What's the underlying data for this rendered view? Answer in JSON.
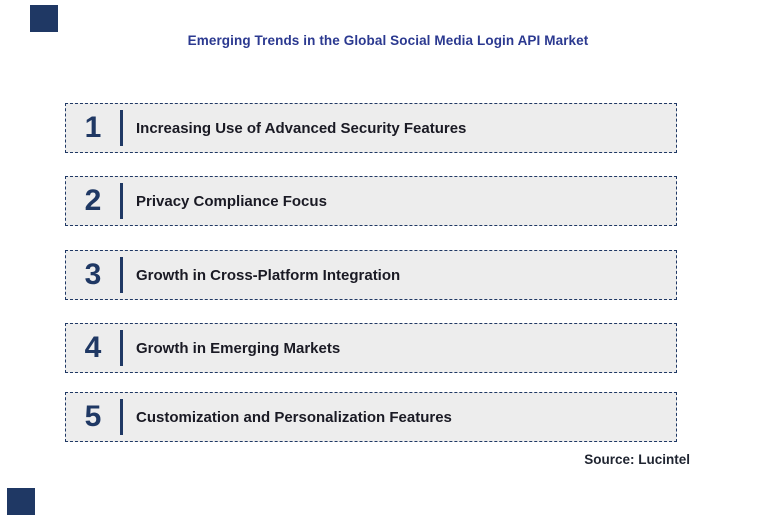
{
  "page": {
    "title": "Emerging Trends in the Global Social Media Login API Market",
    "source": "Source: Lucintel"
  },
  "colors": {
    "accent_navy": "#1F3864",
    "title_blue": "#2B3990",
    "box_background": "#EDEDED",
    "label_text": "#1A1A24"
  },
  "trends": [
    {
      "number": "1",
      "label": "Increasing Use of Advanced Security Features"
    },
    {
      "number": "2",
      "label": "Privacy Compliance Focus"
    },
    {
      "number": "3",
      "label": "Growth in Cross-Platform Integration"
    },
    {
      "number": "4",
      "label": "Growth in Emerging Markets"
    },
    {
      "number": "5",
      "label": "Customization and Personalization Features"
    }
  ]
}
